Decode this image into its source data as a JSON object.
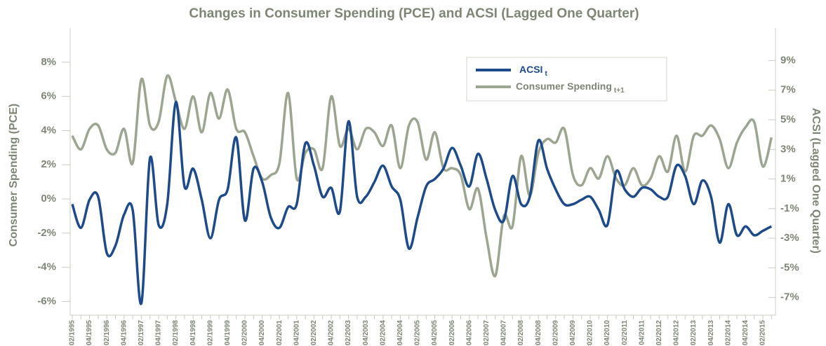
{
  "chart_data": {
    "type": "line",
    "title": "Changes in Consumer Spending (PCE) and ACSI (Lagged One Quarter)",
    "y_label": "Consumer Spending (PCE)",
    "y2_label": "ACSI (Lagged One Quarter)",
    "categories": [
      "02/1995",
      null,
      "04/1995",
      null,
      "02/1996",
      null,
      "04/1996",
      null,
      "02/1997",
      null,
      "04/1997",
      null,
      "02/1998",
      null,
      "04/1998",
      null,
      "02/1999",
      null,
      "04/1999",
      null,
      "02/2000",
      null,
      "04/2000",
      null,
      "02/2001",
      null,
      "04/2001",
      null,
      "02/2002",
      null,
      "04/2002",
      null,
      "02/2003",
      null,
      "04/2003",
      null,
      "02/2004",
      null,
      "04/2004",
      null,
      "02/2005",
      null,
      "04/2005",
      null,
      "02/2006",
      null,
      "04/2006",
      null,
      "02/2007",
      null,
      "04/2007",
      null,
      "02/2008",
      null,
      "04/2008",
      null,
      "02/2009",
      null,
      "04/2009",
      null,
      "02/2010",
      null,
      "04/2010",
      null,
      "02/2011",
      null,
      "04/2011",
      null,
      "02/2012",
      null,
      "04/2012",
      null,
      "02/2013",
      null,
      "04/2013",
      null,
      "02/2014",
      null,
      "04/2014",
      null,
      "02/2015",
      null
    ],
    "series": [
      {
        "name": "ACSI",
        "subscript": "t",
        "color": "#1d4a8a",
        "axis": "y2",
        "values": [
          -0.7,
          -2.3,
          -0.4,
          -0.2,
          -4.0,
          -3.5,
          -1.4,
          -1.1,
          -7.4,
          2.4,
          -2.1,
          -0.7,
          6.2,
          0.5,
          1.7,
          -0.4,
          -3.0,
          -0.4,
          0.3,
          3.8,
          -1.8,
          1.7,
          0.8,
          -1.6,
          -2.3,
          -0.9,
          -0.7,
          3.4,
          1.9,
          -0.2,
          0.4,
          -1.2,
          4.9,
          -0.2,
          -0.2,
          0.8,
          1.9,
          0.5,
          -0.4,
          -3.7,
          -1.6,
          0.5,
          1.0,
          1.7,
          3.1,
          1.9,
          0.5,
          2.7,
          1.0,
          -1.1,
          -1.8,
          1.2,
          -0.7,
          -0.2,
          3.6,
          1.7,
          0.3,
          -0.7,
          -0.7,
          -0.4,
          -0.2,
          -1.1,
          -2.1,
          1.5,
          0.3,
          -0.2,
          0.4,
          0.3,
          -0.2,
          -0.2,
          1.9,
          1.2,
          -0.7,
          0.9,
          -0.2,
          -3.3,
          -0.7,
          -2.8,
          -2.2,
          -2.8,
          -2.5,
          -2.2
        ]
      },
      {
        "name": "Consumer Spending",
        "subscript": "t+1",
        "color": "#9ba58f",
        "values": [
          3.7,
          2.9,
          4.1,
          4.3,
          2.9,
          2.7,
          4.1,
          2.1,
          7.0,
          4.3,
          4.5,
          7.2,
          5.7,
          4.1,
          6.0,
          3.9,
          6.2,
          4.7,
          6.4,
          4.1,
          3.9,
          2.5,
          1.2,
          1.4,
          2.1,
          6.2,
          1.2,
          2.7,
          2.9,
          1.8,
          6.0,
          3.1,
          4.1,
          2.9,
          4.1,
          3.9,
          3.1,
          4.3,
          1.8,
          4.3,
          4.5,
          2.3,
          3.9,
          1.8,
          1.8,
          1.4,
          -0.6,
          0.6,
          -2.3,
          -4.5,
          -1.0,
          -1.6,
          2.5,
          0.2,
          2.7,
          3.5,
          3.3,
          4.1,
          1.4,
          0.8,
          1.8,
          1.2,
          2.5,
          1.2,
          0.8,
          1.8,
          0.8,
          1.2,
          2.5,
          1.6,
          3.7,
          1.6,
          3.7,
          3.7,
          4.3,
          3.5,
          1.8,
          3.3,
          4.2,
          4.5,
          1.9,
          3.6
        ]
      }
    ],
    "ylim": [
      -6.8,
      10
    ],
    "yticks": [
      {
        "value": -6,
        "label": "-6%"
      },
      {
        "value": -4,
        "label": "-4%"
      },
      {
        "value": -2,
        "label": "-2%"
      },
      {
        "value": 0,
        "label": "0%"
      },
      {
        "value": 2,
        "label": "2%"
      },
      {
        "value": 4,
        "label": "4%"
      },
      {
        "value": 6,
        "label": "6%"
      },
      {
        "value": 8,
        "label": "8%"
      }
    ],
    "y2lim": [
      -8.2,
      11.2
    ],
    "y2ticks": [
      {
        "value": -7,
        "label": "-7%"
      },
      {
        "value": -5,
        "label": "-5%"
      },
      {
        "value": -3,
        "label": "-3%"
      },
      {
        "value": -1,
        "label": "-1%"
      },
      {
        "value": 1,
        "label": "1%"
      },
      {
        "value": 3,
        "label": "3%"
      },
      {
        "value": 5,
        "label": "5%"
      },
      {
        "value": 7,
        "label": "7%"
      },
      {
        "value": 9,
        "label": "9%"
      }
    ]
  }
}
